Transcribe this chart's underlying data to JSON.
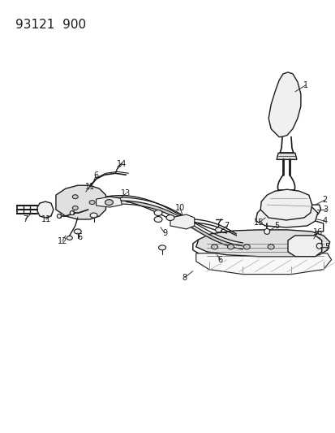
{
  "title": "93121  900",
  "bg_color": "#ffffff",
  "title_fontsize": 11,
  "fig_width": 4.14,
  "fig_height": 5.33,
  "dpi": 100,
  "line_color": "#1a1a1a",
  "fill_light": "#f0f0f0",
  "fill_mid": "#e0e0e0",
  "fill_dark": "#c8c8c8"
}
